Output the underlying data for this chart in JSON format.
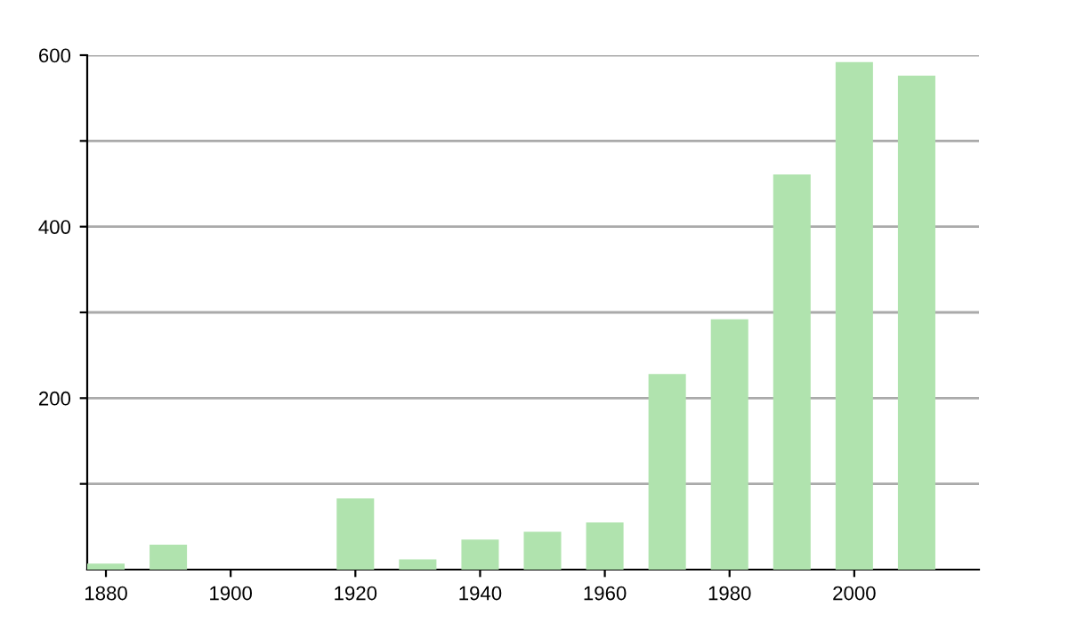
{
  "chart_data": {
    "type": "bar",
    "x": [
      1880,
      1890,
      1920,
      1930,
      1940,
      1950,
      1960,
      1970,
      1980,
      1990,
      2000,
      2010
    ],
    "values": [
      7,
      29,
      83,
      12,
      35,
      44,
      55,
      228,
      292,
      461,
      592,
      576
    ],
    "color": "#b0e3ae",
    "xlim": [
      1877,
      2020
    ],
    "xticks": [
      1880,
      1900,
      1920,
      1940,
      1960,
      1980,
      2000
    ],
    "ylim": [
      0,
      600
    ],
    "yticks": [
      {
        "value": 100,
        "label": null
      },
      200,
      {
        "value": 300,
        "label": null
      },
      400,
      {
        "value": 500,
        "label": null
      },
      600
    ],
    "grid": "y",
    "legend": false
  }
}
